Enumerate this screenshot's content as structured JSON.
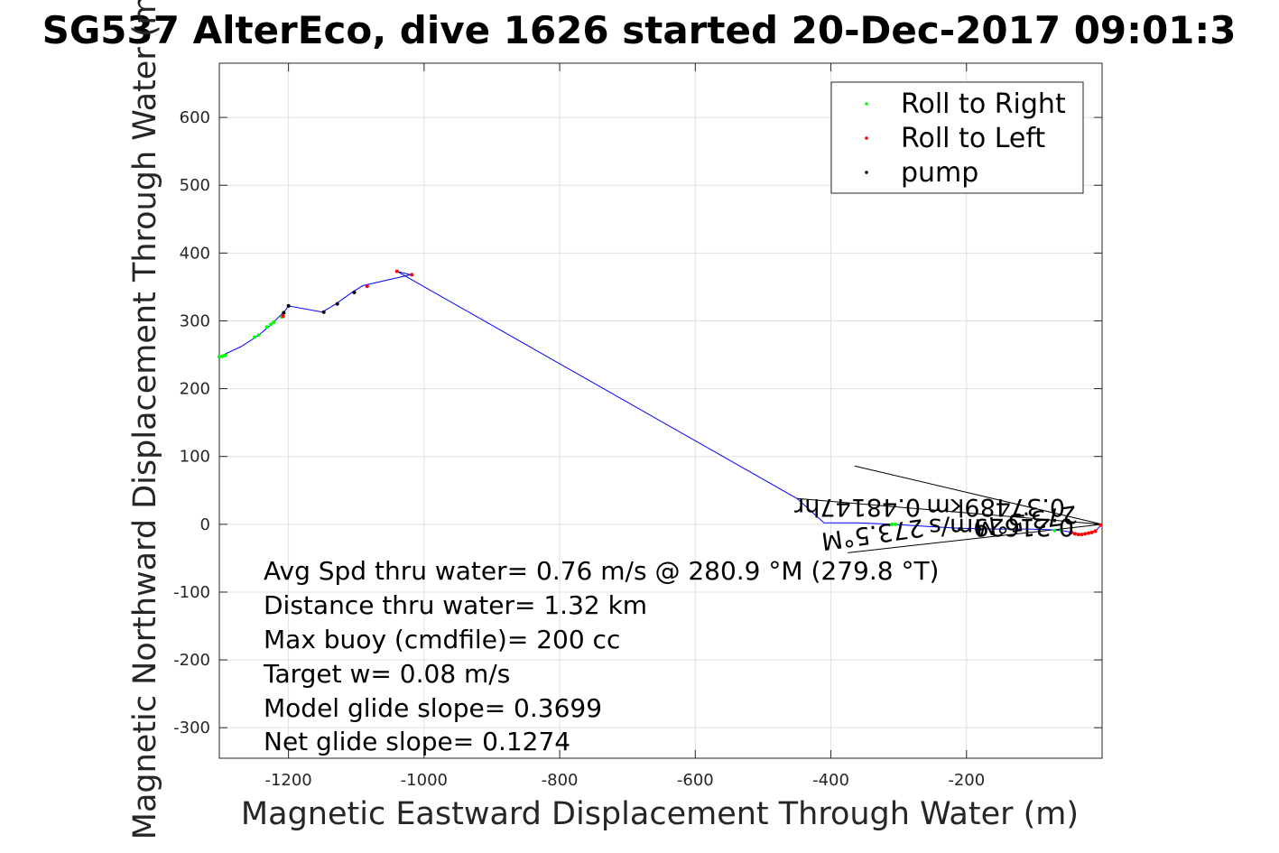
{
  "chart_data": {
    "type": "scatter",
    "title": "SG537 AlterEco, dive 1626 started 20-Dec-2017 09:01:3",
    "xlabel": "Magnetic Eastward Displacement Through Water (m)",
    "ylabel": "Magnetic Northward Displacement Through Water (m)",
    "xlim": [
      -1300,
      0
    ],
    "ylim": [
      -345,
      680
    ],
    "xticks": [
      -1200,
      -1000,
      -800,
      -600,
      -400,
      -200
    ],
    "yticks": [
      -300,
      -200,
      -100,
      0,
      100,
      200,
      300,
      400,
      500,
      600
    ],
    "grid": true,
    "legend_position": "top-right",
    "legend": [
      {
        "label": "Roll to Right",
        "color": "#00ff00"
      },
      {
        "label": "Roll to Left",
        "color": "#ff0000"
      },
      {
        "label": "pump",
        "color": "#000000"
      }
    ],
    "track": {
      "name": "track",
      "color": "#0000ff",
      "x": [
        0,
        -5,
        -10,
        -20,
        -30,
        -45,
        -60,
        -80,
        -110,
        -160,
        -210,
        -260,
        -310,
        -360,
        -410,
        -450,
        -1040,
        -1020,
        -1090,
        -1105,
        -1130,
        -1150,
        -1200,
        -1205,
        -1215,
        -1225,
        -1245,
        -1270,
        -1300
      ],
      "y": [
        0,
        -5,
        -10,
        -13,
        -15,
        -12,
        -9,
        -8,
        -7,
        -7,
        -6,
        -3,
        0,
        2,
        2,
        38,
        373,
        368,
        352,
        343,
        325,
        313,
        322,
        315,
        305,
        295,
        278,
        262,
        248
      ]
    },
    "series": [
      {
        "name": "Roll to Right",
        "color": "#00ff00",
        "x": [
          -1297,
          -1293,
          -1250,
          -1244,
          -1232,
          -1226,
          -1222,
          -1210,
          -1302,
          -60,
          -70,
          -310,
          -305
        ],
        "y": [
          248,
          249,
          276,
          279,
          291,
          295,
          298,
          306,
          247,
          -9,
          -9,
          0,
          0
        ]
      },
      {
        "name": "Roll to Left",
        "color": "#ff0000",
        "x": [
          -1208,
          -1103,
          -1084,
          -1040,
          -1018,
          -2,
          -10,
          -15,
          -20,
          -25,
          -30,
          -35,
          -40,
          -45
        ],
        "y": [
          307,
          342,
          351,
          373,
          368,
          -1,
          -10,
          -12,
          -13,
          -14,
          -15,
          -15,
          -14,
          -12
        ]
      },
      {
        "name": "pump",
        "color": "#000000",
        "x": [
          -1200,
          -1207,
          -1148,
          -1128,
          -1103,
          -210,
          -180
        ],
        "y": [
          322,
          312,
          313,
          325,
          342,
          -7,
          -7
        ]
      }
    ],
    "wedge_lines": [
      {
        "x": [
          0,
          -365
        ],
        "y": [
          0,
          86
        ]
      },
      {
        "x": [
          0,
          -375
        ],
        "y": [
          0,
          -42
        ]
      },
      {
        "x": [
          0,
          -450
        ],
        "y": [
          0,
          38
        ]
      }
    ],
    "rotated_annotations": [
      "0.37489km",
      "0.48147hr",
      "0.21629m/s",
      "273.5°M",
      "273.5°M"
    ],
    "annotations": [
      "Avg Spd thru water=  0.76 m/s @ 280.9 °M (279.8 °T)",
      "Distance thru water=  1.32 km",
      "Max buoy (cmdfile)= 200 cc",
      "Target w= 0.08 m/s",
      "Model glide slope= 0.3699",
      "Net glide slope= 0.1274"
    ]
  }
}
